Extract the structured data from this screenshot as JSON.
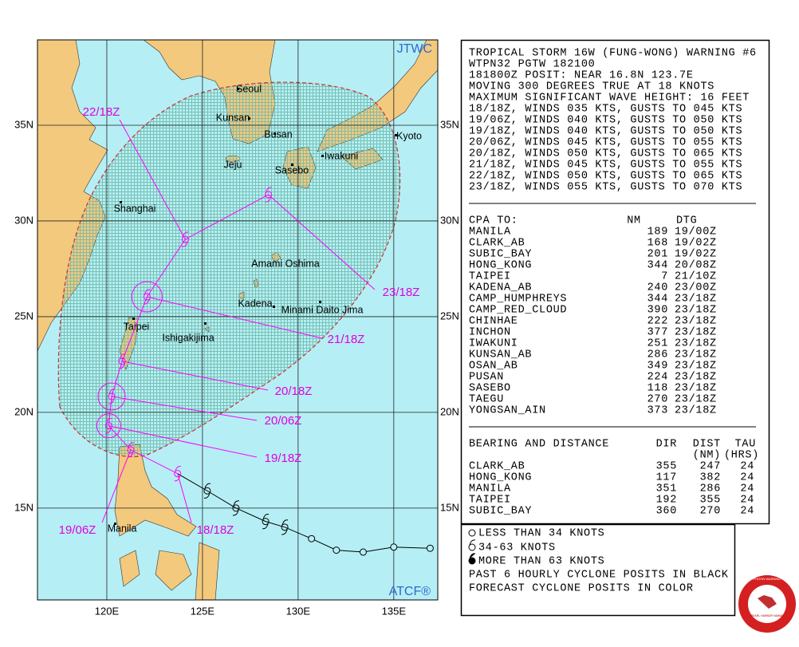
{
  "header": {
    "lines": [
      "TROPICAL STORM 16W (FUNG-WONG) WARNING #6",
      "WTPN32 PGTW 182100",
      "181800Z POSIT: NEAR 16.8N 123.7E",
      "MOVING 300 DEGREES TRUE AT 18 KNOTS",
      "MAXIMUM SIGNIFICANT WAVE HEIGHT: 16 FEET",
      "18/18Z, WINDS 035 KTS, GUSTS TO 045 KTS",
      "19/06Z, WINDS 040 KTS, GUSTS TO 050 KTS",
      "19/18Z, WINDS 040 KTS, GUSTS TO 050 KTS",
      "20/06Z, WINDS 045 KTS, GUSTS TO 055 KTS",
      "20/18Z, WINDS 050 KTS, GUSTS TO 065 KTS",
      "21/18Z, WINDS 045 KTS, GUSTS TO 055 KTS",
      "22/18Z, WINDS 050 KTS, GUSTS TO 065 KTS",
      "23/18Z, WINDS 055 KTS, GUSTS TO 070 KTS"
    ]
  },
  "cpa": {
    "title": "CPA TO:",
    "columns": [
      "NM",
      "DTG"
    ],
    "rows": [
      [
        "MANILA",
        189,
        "19/00Z"
      ],
      [
        "CLARK_AB",
        168,
        "19/02Z"
      ],
      [
        "SUBIC_BAY",
        201,
        "19/02Z"
      ],
      [
        "HONG_KONG",
        344,
        "20/08Z"
      ],
      [
        "TAIPEI",
        7,
        "21/10Z"
      ],
      [
        "KADENA_AB",
        240,
        "23/00Z"
      ],
      [
        "CAMP_HUMPHREYS",
        344,
        "23/18Z"
      ],
      [
        "CAMP_RED_CLOUD",
        390,
        "23/18Z"
      ],
      [
        "CHINHAE",
        222,
        "23/18Z"
      ],
      [
        "INCHON",
        377,
        "23/18Z"
      ],
      [
        "IWAKUNI",
        251,
        "23/18Z"
      ],
      [
        "KUNSAN_AB",
        286,
        "23/18Z"
      ],
      [
        "OSAN_AB",
        349,
        "23/18Z"
      ],
      [
        "PUSAN",
        224,
        "23/18Z"
      ],
      [
        "SASEBO",
        118,
        "23/18Z"
      ],
      [
        "TAEGU",
        270,
        "23/18Z"
      ],
      [
        "YONGSAN_AIN",
        373,
        "23/18Z"
      ]
    ]
  },
  "bearing": {
    "title": "BEARING AND DISTANCE",
    "columns": [
      "DIR",
      "DIST",
      "TAU"
    ],
    "units": [
      "(NM)",
      "(HRS)"
    ],
    "rows": [
      [
        "CLARK_AB",
        355,
        247,
        24
      ],
      [
        "HONG_KONG",
        117,
        382,
        24
      ],
      [
        "MANILA",
        351,
        286,
        24
      ],
      [
        "TAIPEI",
        192,
        355,
        24
      ],
      [
        "SUBIC_BAY",
        360,
        270,
        24
      ]
    ]
  },
  "legend": {
    "items": [
      "LESS THAN 34 KNOTS",
      "34-63 KNOTS",
      "MORE THAN 63 KNOTS",
      "PAST 6 HOURLY CYCLONE POSITS IN BLACK",
      "FORECAST CYCLONE POSITS IN COLOR"
    ]
  },
  "logo": {
    "lines": [
      "JOINT TYPHOON WARNING CENTER",
      "PEARL HARBOR HAWAII"
    ]
  },
  "map": {
    "agency": "JTWC",
    "source": "ATCF®",
    "lonlim": [
      116.375,
      137.3
    ],
    "latlim": [
      10.2,
      39.46
    ],
    "lonticks": [
      {
        "value": 120,
        "label": "120E"
      },
      {
        "value": 125,
        "label": "125E"
      },
      {
        "value": 130,
        "label": "130E"
      },
      {
        "value": 135,
        "label": "135E"
      }
    ],
    "latticks": [
      {
        "value": 15,
        "label": "15N"
      },
      {
        "value": 20,
        "label": "20N"
      },
      {
        "value": 25,
        "label": "25N"
      },
      {
        "value": 30,
        "label": "30N"
      },
      {
        "value": 35,
        "label": "35N"
      }
    ],
    "places": [
      "Seoul",
      "Kunsan",
      "Busan",
      "Kyoto",
      "Iwakuni",
      "Jeju",
      "Sasebo",
      "Shanghai",
      "Amami Oshima",
      "Kadena",
      "Minami Daito Jima",
      "Taipei",
      "Ishigakijima",
      "Manila"
    ],
    "past_track": {
      "color": "#000000",
      "lon": [
        136.9,
        135.0,
        133.4,
        132.0,
        130.7,
        129.3,
        128.3,
        126.75,
        125.25
      ],
      "lat": [
        12.9,
        12.96,
        12.7,
        12.8,
        13.4,
        14.0,
        14.3,
        15.0,
        15.9
      ],
      "symbol": [
        "circle",
        "circle",
        "circle",
        "circle",
        "circle",
        "storm",
        "storm",
        "storm",
        "storm"
      ]
    },
    "forecast": {
      "color": "#ff00ff",
      "labels": [
        "18/18Z",
        "19/06Z",
        "19/18Z",
        "20/06Z",
        "20/18Z",
        "21/18Z",
        "22/18Z",
        "23/18Z"
      ],
      "lon": [
        123.7,
        121.25,
        120.1,
        120.25,
        120.8,
        122.1,
        124.1,
        128.45
      ],
      "lat": [
        16.8,
        18.04,
        19.3,
        20.83,
        22.67,
        26.04,
        29.04,
        31.375
      ]
    }
  }
}
